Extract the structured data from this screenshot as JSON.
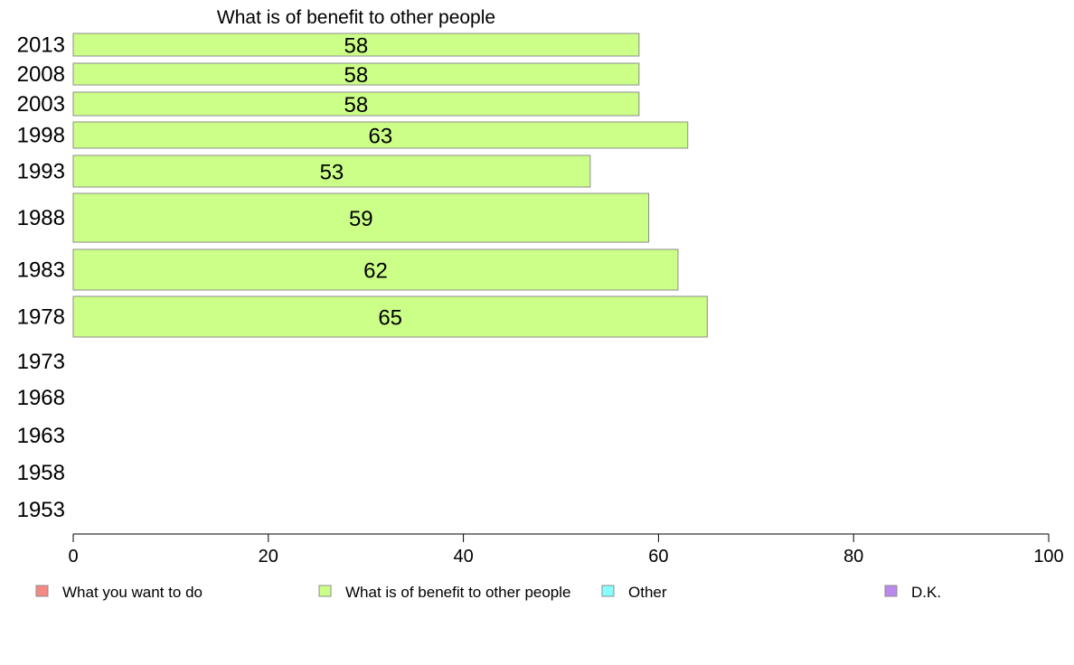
{
  "chart_data": {
    "type": "bar",
    "orientation": "horizontal",
    "title": "What is of benefit to other people",
    "xlabel": "",
    "ylabel": "",
    "xlim": [
      0,
      100
    ],
    "x_ticks": [
      "0",
      "20",
      "40",
      "60",
      "80",
      "100"
    ],
    "categories": [
      "2013",
      "2008",
      "2003",
      "1998",
      "1993",
      "1988",
      "1983",
      "1978",
      "1973",
      "1968",
      "1963",
      "1958",
      "1953"
    ],
    "series": [
      {
        "name": "What is of benefit to other people",
        "color": "#ccff88",
        "values": [
          58,
          58,
          58,
          63,
          53,
          59,
          62,
          65,
          null,
          null,
          null,
          null,
          null
        ],
        "labels": [
          "58",
          "58",
          "58",
          "63",
          "53",
          "59",
          "62",
          "65",
          "",
          "",
          "",
          "",
          ""
        ]
      }
    ],
    "legend": {
      "position": "bottom",
      "items": [
        {
          "label": "What you want to do",
          "color": "#f58a84"
        },
        {
          "label": "What is of benefit to other people",
          "color": "#ccff88"
        },
        {
          "label": "Other",
          "color": "#88ffff"
        },
        {
          "label": "D.K.",
          "color": "#bb88ee"
        }
      ]
    },
    "grid": false
  }
}
